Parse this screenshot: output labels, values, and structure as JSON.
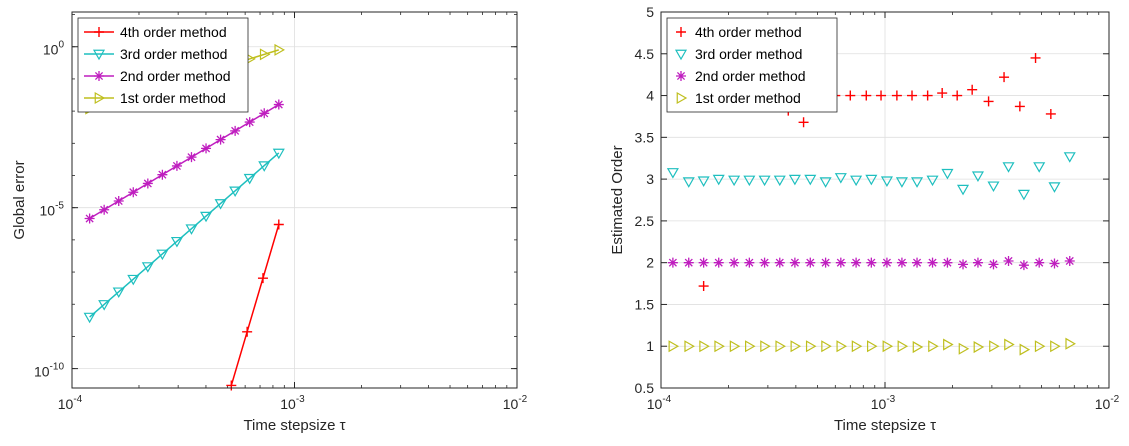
{
  "chart_data": [
    {
      "type": "line",
      "xlabel": "Time stepsize τ",
      "ylabel": "Global error",
      "xscale": "log",
      "yscale": "log",
      "xlim": [
        0.0001,
        0.01
      ],
      "ylim": [
        2.5e-11,
        12
      ],
      "x_ticks": [
        {
          "value": 0.0001,
          "base": "10",
          "exp": "-4"
        },
        {
          "value": 0.001,
          "base": "10",
          "exp": "-3"
        },
        {
          "value": 0.01,
          "base": "10",
          "exp": "-2"
        }
      ],
      "y_ticks": [
        {
          "value": 1e-10,
          "base": "10",
          "exp": "-10"
        },
        {
          "value": 1e-05,
          "base": "10",
          "exp": "-5"
        },
        {
          "value": 1,
          "base": "10",
          "exp": "0"
        }
      ],
      "legend": "top-left",
      "series": [
        {
          "name": "4th order method",
          "color": "#ff0000",
          "marker": "plus",
          "order": 4,
          "x": [
            0.00052,
            0.00085
          ],
          "y": [
            3e-11,
            3e-06
          ]
        },
        {
          "name": "3rd order method",
          "color": "#1ebfbf",
          "marker": "triangle-down",
          "order": 3,
          "x": [
            0.00012,
            0.00085
          ],
          "y": [
            4e-09,
            0.0005
          ]
        },
        {
          "name": "2nd order method",
          "color": "#bf1ebf",
          "marker": "asterisk",
          "order": 2,
          "x": [
            0.00012,
            0.00085
          ],
          "y": [
            4.6e-06,
            0.016
          ]
        },
        {
          "name": "1st order method",
          "color": "#bfbf1e",
          "marker": "triangle-right",
          "order": 1,
          "x": [
            0.00012,
            0.00085
          ],
          "y": [
            0.012,
            0.8
          ]
        }
      ]
    },
    {
      "type": "scatter",
      "xlabel": "Time stepsize τ",
      "ylabel": "Estimated Order",
      "xscale": "log",
      "xlim": [
        0.0001,
        0.01
      ],
      "ylim": [
        0.5,
        5
      ],
      "x_ticks": [
        {
          "value": 0.0001,
          "base": "10",
          "exp": "-4"
        },
        {
          "value": 0.001,
          "base": "10",
          "exp": "-3"
        },
        {
          "value": 0.01,
          "base": "10",
          "exp": "-2"
        }
      ],
      "y_ticks": [
        "0.5",
        "1",
        "1.5",
        "2",
        "2.5",
        "3",
        "3.5",
        "4",
        "4.5",
        "5"
      ],
      "legend": "top-left",
      "series": [
        {
          "name": "4th order method",
          "color": "#ff0000",
          "marker": "plus",
          "x": [
            0.000155,
            0.000317,
            0.00037,
            0.000433,
            0.00051,
            0.0006,
            0.0007,
            0.000825,
            0.00096,
            0.00113,
            0.00132,
            0.00155,
            0.0018,
            0.0021,
            0.00245,
            0.0029,
            0.0034,
            0.004,
            0.0047,
            0.0055
          ],
          "y": [
            1.72,
            3.87,
            3.82,
            3.68,
            4.0,
            4.0,
            4.0,
            4.0,
            4.0,
            4.0,
            4.0,
            4.0,
            4.03,
            4.0,
            4.07,
            3.93,
            4.22,
            3.87,
            4.45,
            3.78
          ]
        },
        {
          "name": "3rd order method",
          "color": "#1ebfbf",
          "marker": "triangle-down",
          "x": [
            0.000113,
            0.000133,
            0.000155,
            0.000181,
            0.000212,
            0.000248,
            0.00029,
            0.000339,
            0.000396,
            0.000464,
            0.000543,
            0.000635,
            0.000743,
            0.000869,
            0.00102,
            0.00119,
            0.00139,
            0.00163,
            0.0019,
            0.00223,
            0.0026,
            0.00305,
            0.00356,
            0.00417,
            0.00488,
            0.00571,
            0.00668
          ],
          "y": [
            3.08,
            2.97,
            2.98,
            3.0,
            2.99,
            2.99,
            2.99,
            2.99,
            3.0,
            3.0,
            2.97,
            3.02,
            2.99,
            3.0,
            2.98,
            2.97,
            2.97,
            2.99,
            3.07,
            2.88,
            3.04,
            2.92,
            3.15,
            2.82,
            3.15,
            2.91,
            3.27
          ]
        },
        {
          "name": "2nd order method",
          "color": "#bf1ebf",
          "marker": "asterisk",
          "x": [
            0.000113,
            0.000133,
            0.000155,
            0.000181,
            0.000212,
            0.000248,
            0.00029,
            0.000339,
            0.000396,
            0.000464,
            0.000543,
            0.000635,
            0.000743,
            0.000869,
            0.00102,
            0.00119,
            0.00139,
            0.00163,
            0.0019,
            0.00223,
            0.0026,
            0.00305,
            0.00356,
            0.00417,
            0.00488,
            0.00571,
            0.00668
          ],
          "y": [
            2.0,
            2.0,
            2.0,
            2.0,
            2.0,
            2.0,
            2.0,
            2.0,
            2.0,
            2.0,
            2.0,
            2.0,
            2.0,
            2.0,
            2.0,
            2.0,
            2.0,
            2.0,
            2.0,
            1.98,
            2.0,
            1.98,
            2.02,
            1.97,
            2.0,
            1.99,
            2.02
          ]
        },
        {
          "name": "1st order method",
          "color": "#bfbf1e",
          "marker": "triangle-right",
          "x": [
            0.000113,
            0.000133,
            0.000155,
            0.000181,
            0.000212,
            0.000248,
            0.00029,
            0.000339,
            0.000396,
            0.000464,
            0.000543,
            0.000635,
            0.000743,
            0.000869,
            0.00102,
            0.00119,
            0.00139,
            0.00163,
            0.0019,
            0.00223,
            0.0026,
            0.00305,
            0.00356,
            0.00417,
            0.00488,
            0.00571,
            0.00668
          ],
          "y": [
            1.0,
            1.0,
            1.0,
            1.0,
            1.0,
            1.0,
            1.0,
            1.0,
            1.0,
            1.0,
            1.0,
            1.0,
            1.0,
            1.0,
            1.0,
            1.0,
            0.99,
            1.0,
            1.02,
            0.97,
            0.99,
            1.0,
            1.02,
            0.96,
            1.0,
            1.0,
            1.03
          ]
        }
      ]
    }
  ]
}
